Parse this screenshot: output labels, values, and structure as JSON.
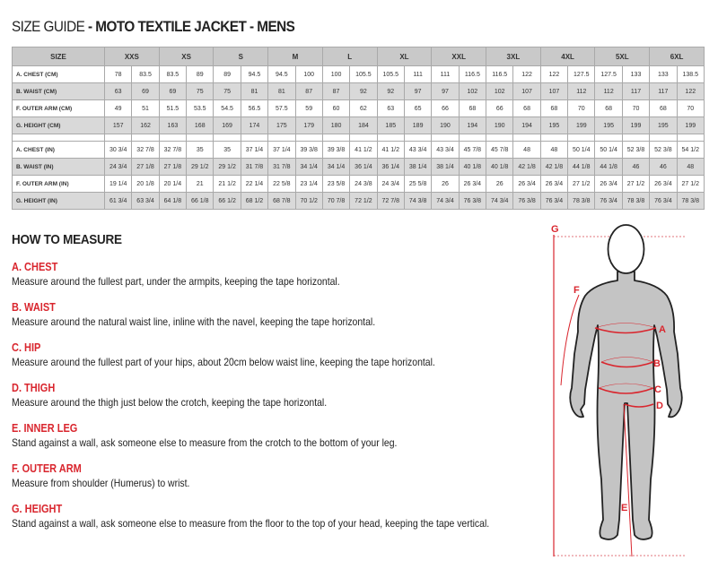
{
  "title": {
    "prefix": "SIZE GUIDE",
    "main": " - MOTO TEXTILE JACKET - MENS"
  },
  "table": {
    "size_label": "SIZE",
    "sizes": [
      "XXS",
      "XS",
      "S",
      "M",
      "L",
      "XL",
      "XXL",
      "3XL",
      "4XL",
      "5XL",
      "6XL"
    ],
    "cm_rows": [
      {
        "label": "A. CHEST (CM)",
        "values": [
          "78",
          "83.5",
          "83.5",
          "89",
          "89",
          "94.5",
          "94.5",
          "100",
          "100",
          "105.5",
          "105.5",
          "111",
          "111",
          "116.5",
          "116.5",
          "122",
          "122",
          "127.5",
          "127.5",
          "133",
          "133",
          "138.5"
        ]
      },
      {
        "label": "B. WAIST (CM)",
        "values": [
          "63",
          "69",
          "69",
          "75",
          "75",
          "81",
          "81",
          "87",
          "87",
          "92",
          "92",
          "97",
          "97",
          "102",
          "102",
          "107",
          "107",
          "112",
          "112",
          "117",
          "117",
          "122"
        ]
      },
      {
        "label": "F. OUTER ARM (CM)",
        "values": [
          "49",
          "51",
          "51.5",
          "53.5",
          "54.5",
          "56.5",
          "57.5",
          "59",
          "60",
          "62",
          "63",
          "65",
          "66",
          "68",
          "66",
          "68",
          "68",
          "70",
          "68",
          "70",
          "68",
          "70"
        ]
      },
      {
        "label": "G. HEIGHT (CM)",
        "values": [
          "157",
          "162",
          "163",
          "168",
          "169",
          "174",
          "175",
          "179",
          "180",
          "184",
          "185",
          "189",
          "190",
          "194",
          "190",
          "194",
          "195",
          "199",
          "195",
          "199",
          "195",
          "199"
        ]
      }
    ],
    "in_rows": [
      {
        "label": "A. CHEST (IN)",
        "values": [
          "30 3/4",
          "32 7/8",
          "32 7/8",
          "35",
          "35",
          "37 1/4",
          "37 1/4",
          "39 3/8",
          "39 3/8",
          "41 1/2",
          "41 1/2",
          "43 3/4",
          "43 3/4",
          "45 7/8",
          "45 7/8",
          "48",
          "48",
          "50 1/4",
          "50 1/4",
          "52 3/8",
          "52 3/8",
          "54 1/2"
        ]
      },
      {
        "label": "B. WAIST (IN)",
        "values": [
          "24 3/4",
          "27 1/8",
          "27 1/8",
          "29 1/2",
          "29 1/2",
          "31 7/8",
          "31 7/8",
          "34 1/4",
          "34 1/4",
          "36 1/4",
          "36 1/4",
          "38 1/4",
          "38 1/4",
          "40 1/8",
          "40 1/8",
          "42 1/8",
          "42 1/8",
          "44 1/8",
          "44 1/8",
          "46",
          "46",
          "48"
        ]
      },
      {
        "label": "F. OUTER ARM (IN)",
        "values": [
          "19 1/4",
          "20 1/8",
          "20 1/4",
          "21",
          "21 1/2",
          "22 1/4",
          "22 5/8",
          "23 1/4",
          "23 5/8",
          "24 3/8",
          "24 3/4",
          "25 5/8",
          "26",
          "26 3/4",
          "26",
          "26 3/4",
          "26 3/4",
          "27 1/2",
          "26 3/4",
          "27 1/2",
          "26 3/4",
          "27 1/2"
        ]
      },
      {
        "label": "G. HEIGHT (IN)",
        "values": [
          "61 3/4",
          "63 3/4",
          "64 1/8",
          "66 1/8",
          "66 1/2",
          "68 1/2",
          "68 7/8",
          "70 1/2",
          "70 7/8",
          "72 1/2",
          "72 7/8",
          "74 3/8",
          "74 3/4",
          "76 3/8",
          "74 3/4",
          "76 3/8",
          "76 3/4",
          "78 3/8",
          "76 3/4",
          "78 3/8",
          "76 3/4",
          "78 3/8"
        ]
      }
    ]
  },
  "how_to_measure": {
    "title": "HOW TO MEASURE",
    "items": [
      {
        "heading": "A. CHEST",
        "text": "Measure around the fullest part, under the armpits, keeping the tape horizontal."
      },
      {
        "heading": "B. WAIST",
        "text": "Measure around the natural waist line, inline with the navel, keeping the tape horizontal."
      },
      {
        "heading": "C. HIP",
        "text": "Measure around the fullest part of your hips, about 20cm below waist line, keeping the tape horizontal."
      },
      {
        "heading": "D. THIGH",
        "text": "Measure around the thigh just below the crotch, keeping the tape horizontal."
      },
      {
        "heading": "E. INNER LEG",
        "text": "Stand against a wall, ask someone else to measure from the crotch to the bottom of your leg."
      },
      {
        "heading": "F. OUTER ARM",
        "text": "Measure from shoulder (Humerus) to wrist."
      },
      {
        "heading": "G. HEIGHT",
        "text": "Stand against a wall, ask someone else to measure from the floor to the top of your head, keeping the tape vertical."
      }
    ]
  },
  "figure": {
    "labels": [
      "G",
      "F",
      "A",
      "B",
      "C",
      "D",
      "E"
    ]
  },
  "colors": {
    "accent": "#d9262e",
    "header_bg": "#c9c9c9",
    "alt_row": "#d9d9d9",
    "body": "#c4c4c4"
  }
}
